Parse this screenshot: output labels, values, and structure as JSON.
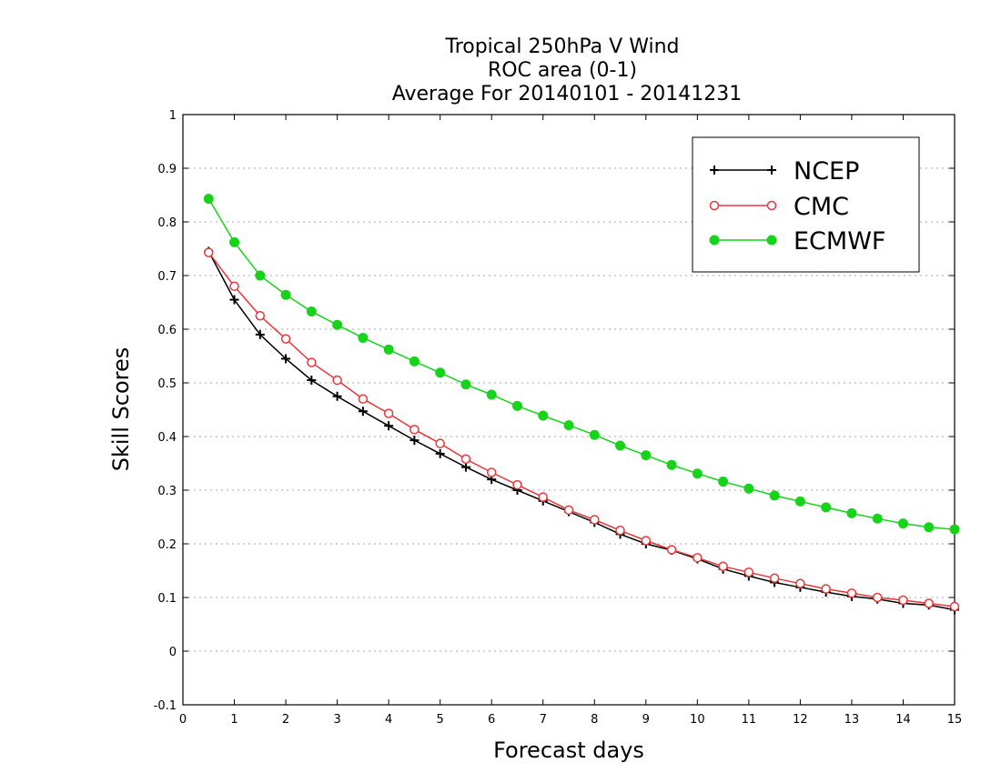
{
  "chart_data": {
    "type": "line",
    "title": [
      "Tropical 250hPa V Wind",
      "ROC area (0-1)",
      "Average For 20140101 - 20141231"
    ],
    "xlabel": "Forecast days",
    "ylabel": "Skill Scores",
    "xlim": [
      0,
      15
    ],
    "ylim": [
      -0.1,
      1
    ],
    "xticks": [
      "0",
      "1",
      "2",
      "3",
      "4",
      "5",
      "6",
      "7",
      "8",
      "9",
      "10",
      "11",
      "12",
      "13",
      "14",
      "15"
    ],
    "yticks": [
      "-0.1",
      "0",
      "0.1",
      "0.2",
      "0.3",
      "0.4",
      "0.5",
      "0.6",
      "0.7",
      "0.8",
      "0.9",
      "1"
    ],
    "grid": "horizontal dotted",
    "legend_position": "top-right",
    "x": [
      0.5,
      1,
      1.5,
      2,
      2.5,
      3,
      3.5,
      4,
      4.5,
      5,
      5.5,
      6,
      6.5,
      7,
      7.5,
      8,
      8.5,
      9,
      9.5,
      10,
      10.5,
      11,
      11.5,
      12,
      12.5,
      13,
      13.5,
      14,
      14.5,
      15
    ],
    "series": [
      {
        "name": "NCEP",
        "color": "#000000",
        "marker": "plus",
        "values": [
          0.745,
          0.655,
          0.59,
          0.545,
          0.505,
          0.475,
          0.447,
          0.42,
          0.393,
          0.368,
          0.343,
          0.32,
          0.3,
          0.28,
          0.26,
          0.24,
          0.218,
          0.2,
          0.188,
          0.172,
          0.153,
          0.14,
          0.128,
          0.119,
          0.11,
          0.102,
          0.097,
          0.089,
          0.086,
          0.077
        ]
      },
      {
        "name": "CMC",
        "color": "#e8373a",
        "marker": "open-circle",
        "values": [
          0.743,
          0.68,
          0.625,
          0.582,
          0.538,
          0.505,
          0.47,
          0.443,
          0.413,
          0.387,
          0.358,
          0.333,
          0.31,
          0.287,
          0.263,
          0.245,
          0.225,
          0.206,
          0.189,
          0.174,
          0.158,
          0.147,
          0.136,
          0.126,
          0.116,
          0.108,
          0.1,
          0.095,
          0.089,
          0.083
        ]
      },
      {
        "name": "ECMWF",
        "color": "#17d31a",
        "marker": "filled-circle",
        "values": [
          0.843,
          0.762,
          0.7,
          0.664,
          0.633,
          0.608,
          0.584,
          0.562,
          0.54,
          0.519,
          0.497,
          0.478,
          0.457,
          0.439,
          0.421,
          0.403,
          0.383,
          0.365,
          0.347,
          0.331,
          0.316,
          0.303,
          0.29,
          0.279,
          0.268,
          0.257,
          0.247,
          0.238,
          0.231,
          0.227
        ]
      }
    ]
  }
}
